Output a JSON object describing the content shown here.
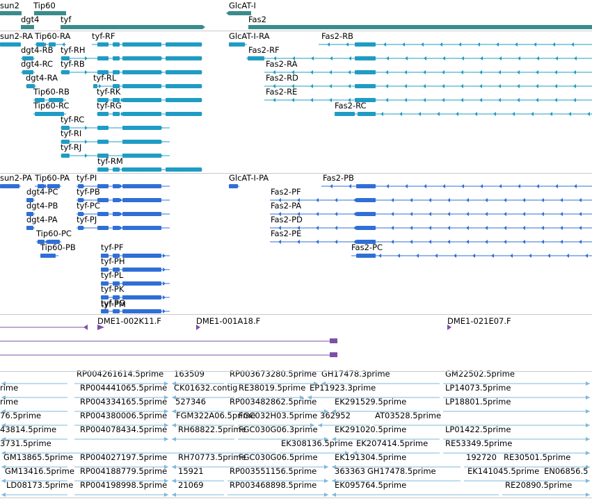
{
  "colors": {
    "gene": "#3a8c8c",
    "rna": "#1f9cc4",
    "protein": "#2f6fd6",
    "clone": "#7e4fa8",
    "est": "#7fb8dc",
    "separator": "#c9c9c9",
    "text": "#000000"
  },
  "tracks": {
    "gene": {
      "labels": [
        "sun2",
        "Tip60",
        "dgt4",
        "tyf",
        "GlcAT-I",
        "Fas2"
      ]
    },
    "rna": {
      "labels": [
        "sun2-RA",
        "Tip60-RA",
        "tyf-RF",
        "GlcAT-I-RA",
        "Fas2-RB",
        "dgt4-RB",
        "tyf-RH",
        "Fas2-RF",
        "dgt4-RC",
        "tyf-RB",
        "Fas2-RA",
        "dgt4-RA",
        "tyf-RL",
        "Fas2-RD",
        "Tip60-RB",
        "tyf-RK",
        "Fas2-RE",
        "Tip60-RC",
        "tyf-RG",
        "Fas2-RC",
        "tyf-RC",
        "tyf-RI",
        "tyf-RJ",
        "tyf-RM"
      ]
    },
    "protein": {
      "labels": [
        "sun2-PA",
        "Tip60-PA",
        "tyf-PI",
        "GlcAT-I-PA",
        "Fas2-PB",
        "dgt4-PC",
        "tyf-PB",
        "Fas2-PF",
        "dgt4-PB",
        "tyf-PC",
        "Fas2-PA",
        "dgt4-PA",
        "tyf-PJ",
        "Fas2-PD",
        "Tip60-PC",
        "Fas2-PE",
        "Tip60-PB",
        "tyf-PF",
        "Fas2-PC",
        "tyf-PH",
        "tyf-PL",
        "tyf-PK",
        "tyf-PG",
        "tyf-PM"
      ]
    },
    "clone": {
      "labels": [
        "DME1-002K11.F",
        "DME1-001A18.F",
        "DME1-021E07.F"
      ]
    },
    "est": {
      "labels": [
        "RP004261614.5prime",
        "163509",
        "RP003673280.5prime",
        "GH17478.3prime",
        "GM22502.5prime",
        "rime",
        "RP004441065.5prime",
        "CK01632.contig",
        "RE38019.5prime",
        "EP11923.3prime",
        "LP14073.5prime",
        "rime",
        "RP004334165.5prime",
        "527346",
        "RP003482862.5prime",
        "EK291529.5prime",
        "LP18801.5prime",
        "76.5prime",
        "RP004380006.5prime",
        "FGM322A06.5prime",
        "FGC032H03.5prime",
        "362952",
        "AT03528.5prime",
        "43814.5prime",
        "RP004078434.5prime",
        "RH68822.5prime",
        "FGC030G06.3prime",
        "EK291020.5prime",
        "LP01422.5prime",
        "3731.5prime",
        "EK308136.5prime",
        "EK207414.5prime",
        "RE53349.5prime",
        "GM13865.5prime",
        "RP004027197.5prime",
        "RH70773.5prime",
        "FGC030G06.5prime",
        "EK191304.5prime",
        "192720",
        "RE30501.5prime",
        "GM13416.5prime",
        "RP004188779.5prime",
        "15921",
        "RP003551156.5prime",
        "363363",
        "GH17478.5prime",
        "EK141045.5prime",
        "EN06856.5",
        "LD08173.5prime",
        "RP004198998.5prime",
        "21069",
        "RP003468898.5prime",
        "EK095764.5prime",
        "RE20890.5prime"
      ]
    }
  }
}
